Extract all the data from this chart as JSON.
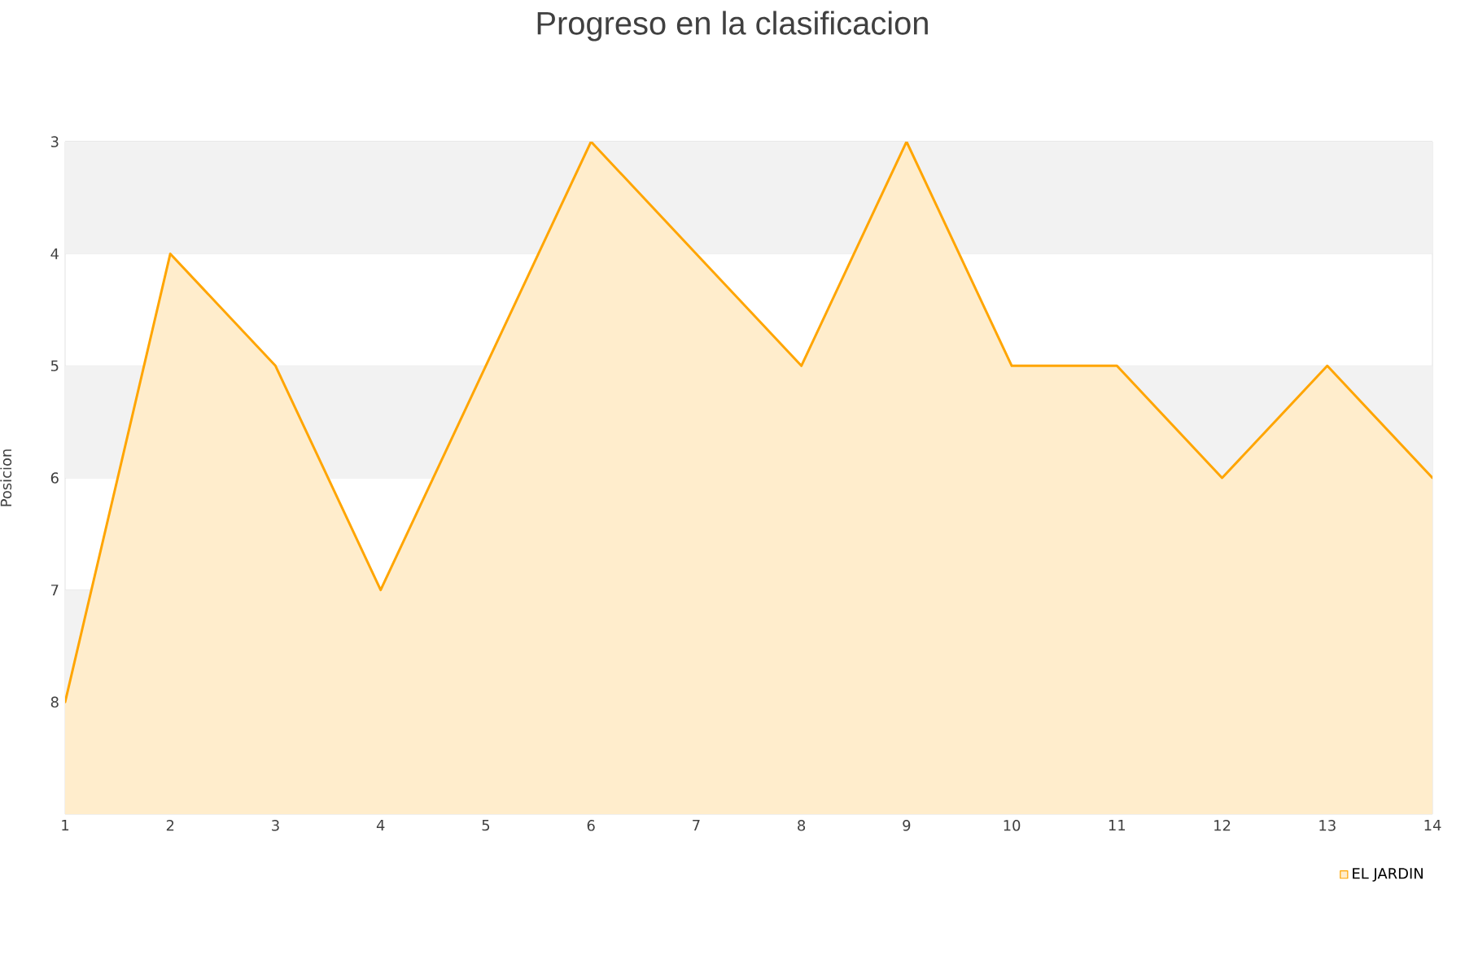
{
  "chart_data": {
    "type": "area",
    "title": "Progreso en la clasificacion",
    "ylabel": "Posicion",
    "x": [
      1,
      2,
      3,
      4,
      5,
      6,
      7,
      8,
      9,
      10,
      11,
      12,
      13,
      14
    ],
    "series": [
      {
        "name": "EL JARDIN",
        "color": "#ffa500",
        "values": [
          8,
          4,
          5,
          7,
          5,
          3,
          4,
          5,
          3,
          5,
          5,
          6,
          5,
          6
        ]
      }
    ],
    "xlim": [
      1,
      14
    ],
    "ylim": [
      9,
      3
    ],
    "xticks": [
      1,
      2,
      3,
      4,
      5,
      6,
      7,
      8,
      9,
      10,
      11,
      12,
      13,
      14
    ],
    "yticks": [
      3,
      4,
      5,
      6,
      7,
      8
    ],
    "grid": "y",
    "legend": "bottom right",
    "marker": "none",
    "bands": [
      {
        "axis": "y",
        "from": 3,
        "to": 4,
        "color": "#f2f2f2"
      },
      {
        "axis": "y",
        "from": 5,
        "to": 6,
        "color": "#f2f2f2"
      },
      {
        "axis": "y",
        "from": 7,
        "to": 8,
        "color": "#f2f2f2"
      }
    ]
  }
}
